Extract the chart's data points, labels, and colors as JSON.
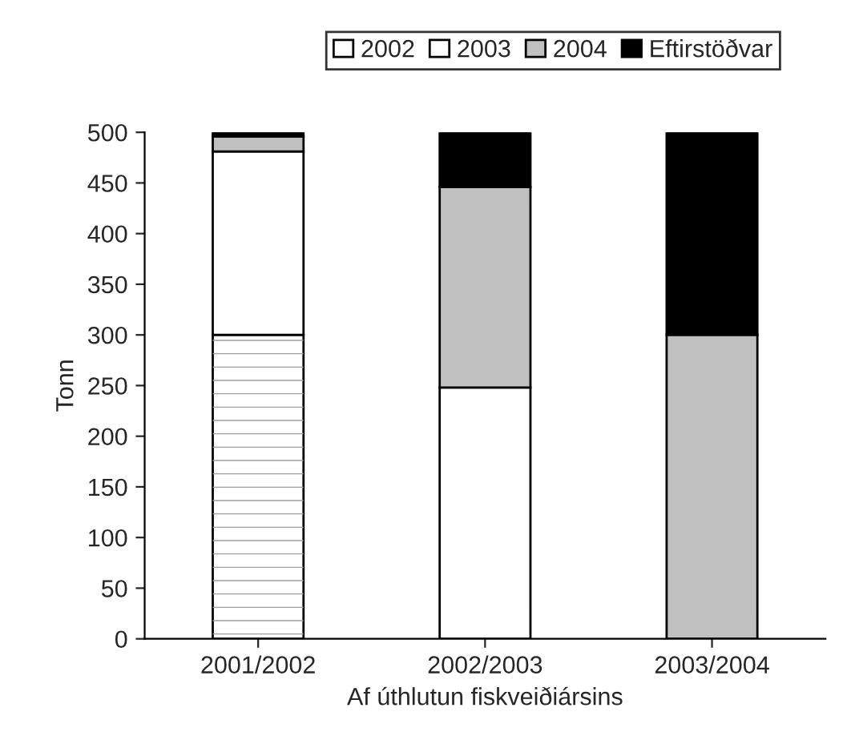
{
  "chart_data": {
    "type": "bar",
    "stacked": true,
    "xlabel": "Af úthlutun fiskveiðiársins",
    "ylabel": "Tonn",
    "categories": [
      "2001/2002",
      "2002/2003",
      "2003/2004"
    ],
    "series": [
      {
        "name": "2002",
        "color": "#ffffff",
        "values": [
          300,
          0,
          0
        ]
      },
      {
        "name": "2003",
        "color": "#ffffff",
        "values": [
          181,
          248,
          0
        ]
      },
      {
        "name": "2004",
        "color": "#c0c0c0",
        "values": [
          15,
          198,
          300
        ]
      },
      {
        "name": "Eftirstöðvar",
        "color": "#000000",
        "values": [
          4,
          54,
          200
        ]
      }
    ],
    "ylim": [
      0,
      500
    ],
    "yticks": [
      0,
      50,
      100,
      150,
      200,
      250,
      300,
      350,
      400,
      450,
      500
    ],
    "grid": false,
    "legend": "top"
  }
}
